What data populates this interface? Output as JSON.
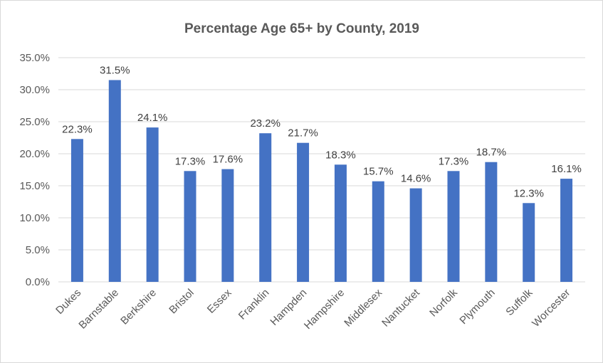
{
  "chart_data": {
    "type": "bar",
    "title": "Percentage Age 65+ by County, 2019",
    "xlabel": "",
    "ylabel": "",
    "categories": [
      "Dukes",
      "Barnstable",
      "Berkshire",
      "Bristol",
      "Essex",
      "Franklin",
      "Hampden",
      "Hampshire",
      "Middlesex",
      "Nantucket",
      "Norfolk",
      "Plymouth",
      "Suffolk",
      "Worcester"
    ],
    "values": [
      22.3,
      31.5,
      24.1,
      17.3,
      17.6,
      23.2,
      21.7,
      18.3,
      15.7,
      14.6,
      17.3,
      18.7,
      12.3,
      16.1
    ],
    "data_labels": [
      "22.3%",
      "31.5%",
      "24.1%",
      "17.3%",
      "17.6%",
      "23.2%",
      "21.7%",
      "18.3%",
      "15.7%",
      "14.6%",
      "17.3%",
      "18.7%",
      "12.3%",
      "16.1%"
    ],
    "ylim": [
      0,
      35
    ],
    "yticks": [
      0,
      5,
      10,
      15,
      20,
      25,
      30,
      35
    ],
    "ytick_labels": [
      "0.0%",
      "5.0%",
      "10.0%",
      "15.0%",
      "20.0%",
      "25.0%",
      "30.0%",
      "35.0%"
    ],
    "grid": true,
    "legend": "none",
    "bar_color": "#4472c4"
  }
}
